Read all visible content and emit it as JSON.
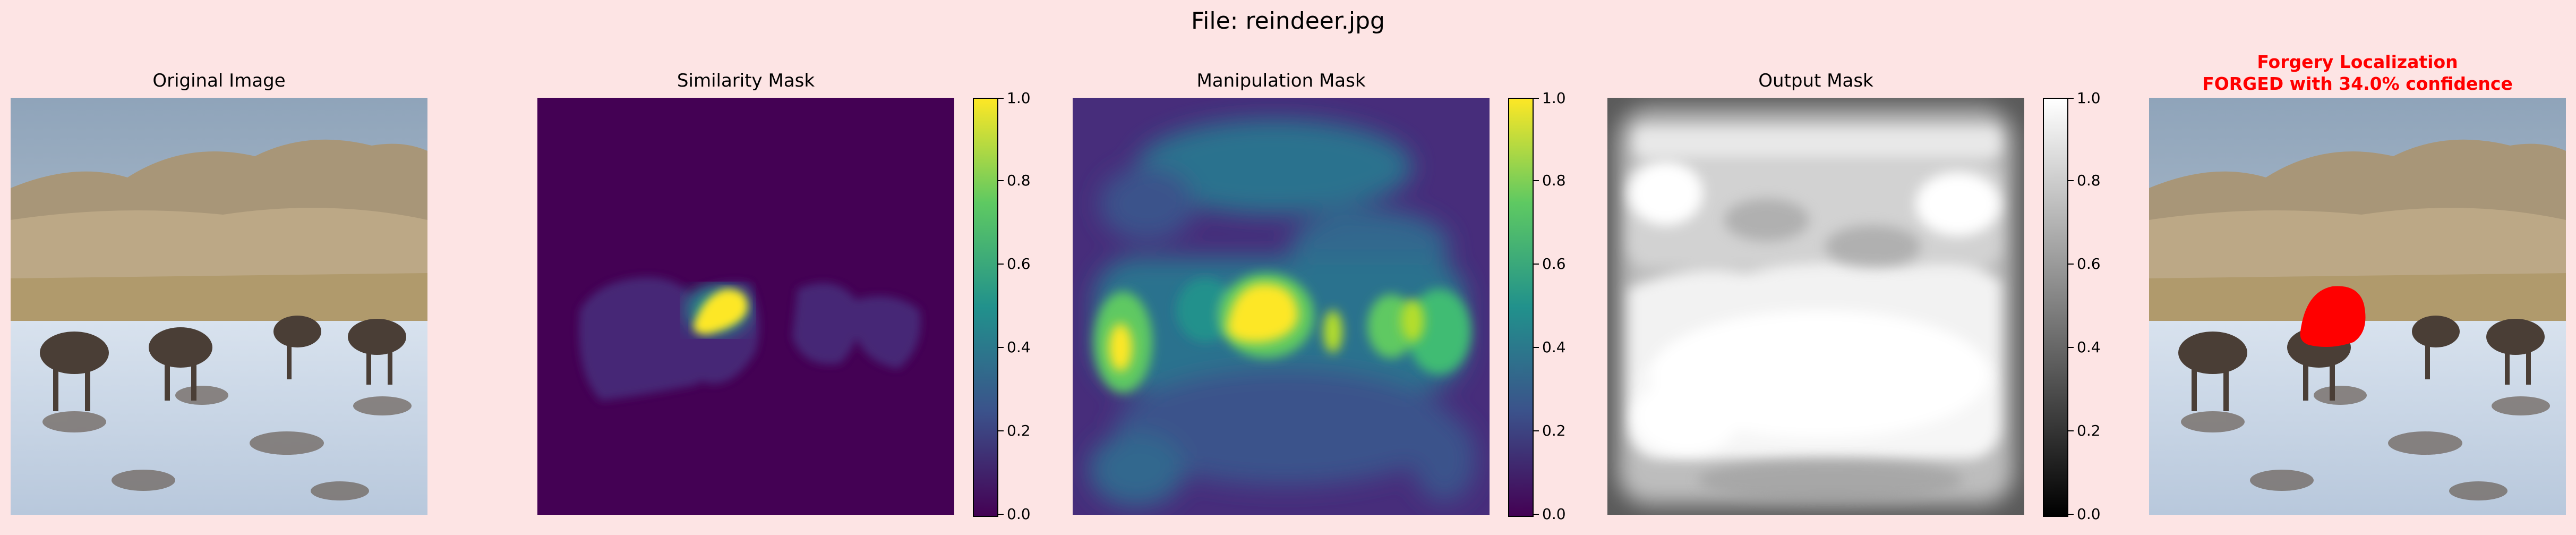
{
  "figure": {
    "suptitle": "File: reindeer.jpg",
    "panels": [
      {
        "id": "original",
        "title": "Original Image"
      },
      {
        "id": "similarity",
        "title": "Similarity Mask"
      },
      {
        "id": "manipulation",
        "title": "Manipulation Mask"
      },
      {
        "id": "output",
        "title": "Output Mask"
      },
      {
        "id": "forgery",
        "title_line1": "Forgery Localization",
        "title_line2": "FORGED with 34.0% confidence"
      }
    ]
  },
  "colors": {
    "background": "#fde4e4",
    "title_red": "#ff0000",
    "viridis": [
      "#440154",
      "#3b528b",
      "#21918c",
      "#5ec962",
      "#fde725"
    ],
    "gray": [
      "#000000",
      "#ffffff"
    ],
    "overlay_red": "#ff0000"
  },
  "chart_data": [
    {
      "type": "heatmap",
      "title": "Original Image"
    },
    {
      "type": "heatmap",
      "title": "Similarity Mask",
      "colormap": "viridis",
      "colorbar": {
        "range": [
          0.0,
          1.0
        ],
        "ticks": [
          "0.0",
          "0.2",
          "0.4",
          "0.6",
          "0.8",
          "1.0"
        ]
      }
    },
    {
      "type": "heatmap",
      "title": "Manipulation Mask",
      "colormap": "viridis",
      "colorbar": {
        "range": [
          0.0,
          1.0
        ],
        "ticks": [
          "0.0",
          "0.2",
          "0.4",
          "0.6",
          "0.8",
          "1.0"
        ]
      }
    },
    {
      "type": "heatmap",
      "title": "Output Mask",
      "colormap": "gray",
      "colorbar": {
        "range": [
          0.0,
          1.0
        ],
        "ticks": [
          "0.0",
          "0.2",
          "0.4",
          "0.6",
          "0.8",
          "1.0"
        ]
      }
    },
    {
      "type": "heatmap",
      "title": "Forgery Localization",
      "annotation": "FORGED with 34.0% confidence",
      "confidence": 34.0
    }
  ]
}
